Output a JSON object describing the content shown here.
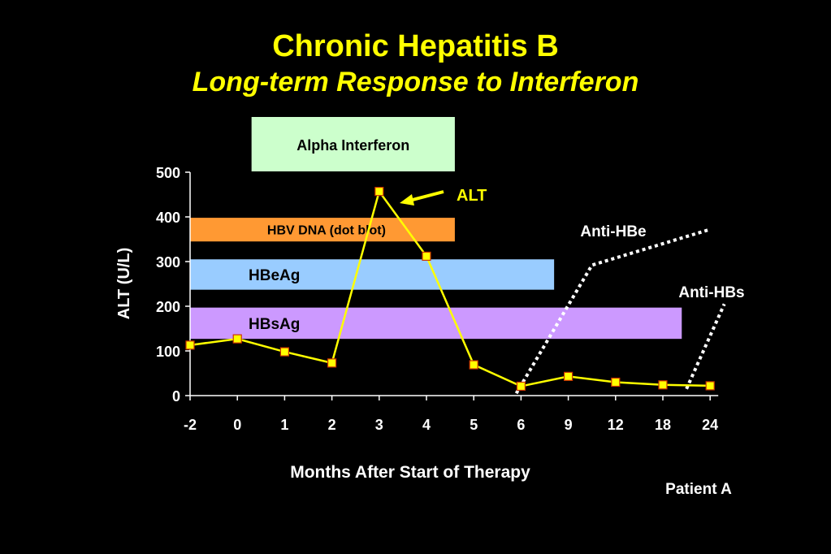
{
  "slide": {
    "title": "Chronic Hepatitis B",
    "subtitle": "Long-term Response to Interferon",
    "footer": "Patient A"
  },
  "colors": {
    "background": "#000000",
    "title": "#ffff00",
    "alt_line": "#ffff00",
    "marker_fill": "#ffff00",
    "marker_stroke": "#cc3300",
    "interferon_box": "#ccffcc",
    "hbv_dna_bar": "#ff9933",
    "hbeag_bar": "#99ccff",
    "hbsag_bar": "#cc99ff",
    "antibody_line": "#ffffff"
  },
  "chart_data": {
    "type": "line",
    "xlabel": "Months After Start of Therapy",
    "ylabel": "ALT (U/L)",
    "ylim": [
      0,
      500
    ],
    "yticks": [
      0,
      100,
      200,
      300,
      400,
      500
    ],
    "categories": [
      "-2",
      "0",
      "1",
      "2",
      "3",
      "4",
      "5",
      "6",
      "9",
      "12",
      "18",
      "24"
    ],
    "series": [
      {
        "name": "ALT",
        "values": [
          113,
          127,
          98,
          73,
          457,
          312,
          69,
          21,
          43,
          30,
          24,
          22
        ]
      }
    ],
    "annotations": {
      "interferon_label": "Alpha Interferon",
      "alt_label": "ALT",
      "anti_hbe_label": "Anti-HBe",
      "anti_hbs_label": "Anti-HBs"
    },
    "bars": [
      {
        "key": "hbv_dna",
        "label": "HBV DNA (dot blot)",
        "from_index": 0,
        "to_index": 5.6,
        "y_top": 398,
        "y_bottom": 345
      },
      {
        "key": "hbeag",
        "label": "HBeAg",
        "from_index": 0,
        "to_index": 7.7,
        "y_top": 305,
        "y_bottom": 237
      },
      {
        "key": "hbsag",
        "label": "HBsAg",
        "from_index": 0,
        "to_index": 10.4,
        "y_top": 197,
        "y_bottom": 127
      }
    ],
    "interferon_period": {
      "from_index": 1.3,
      "to_index": 5.6
    },
    "anti_hbe": {
      "points": [
        [
          6.9,
          5
        ],
        [
          8.5,
          292
        ],
        [
          11.0,
          372
        ]
      ]
    },
    "anti_hbs": {
      "points": [
        [
          10.5,
          15
        ],
        [
          11.3,
          205
        ]
      ]
    }
  }
}
